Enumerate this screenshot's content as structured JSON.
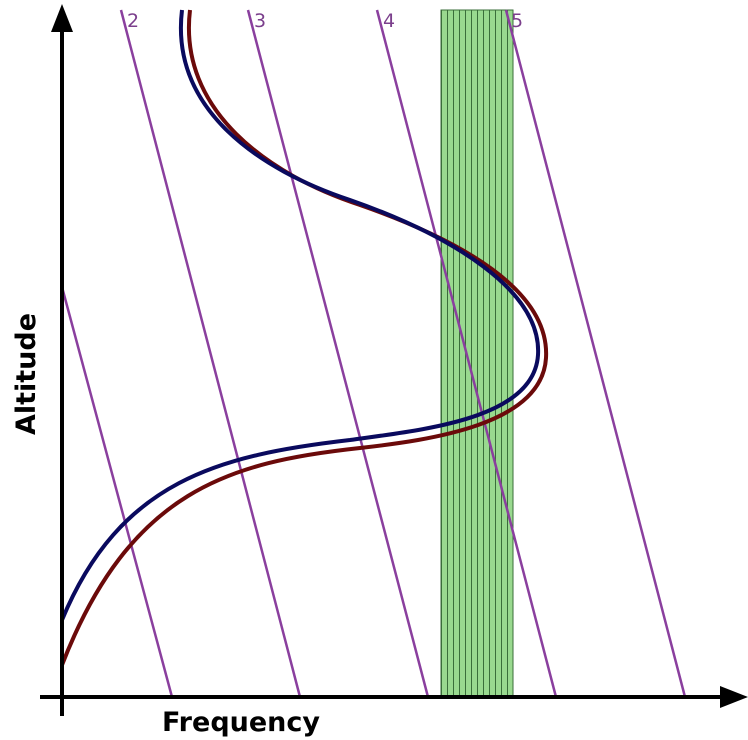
{
  "axes": {
    "y_label": "Altitude",
    "x_label": "Frequency"
  },
  "lines": [
    {
      "label": "2"
    },
    {
      "label": "3"
    },
    {
      "label": "4"
    },
    {
      "label": "5"
    }
  ]
}
